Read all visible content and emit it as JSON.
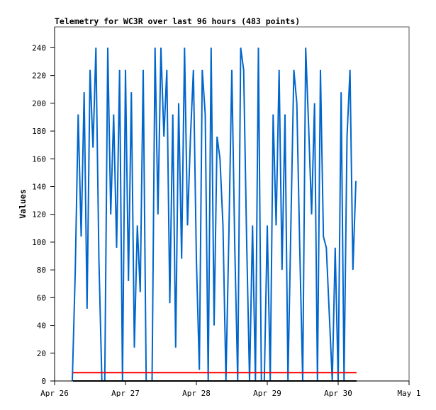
{
  "chart_data": {
    "type": "line",
    "title": "Telemetry for WC3R over last 96 hours (483 points)",
    "xlabel": "",
    "ylabel": "Values",
    "x_ticks": [
      "Apr 26",
      "Apr 27",
      "Apr 28",
      "Apr 29",
      "Apr 30",
      "May 1"
    ],
    "y_ticks": [
      0,
      20,
      40,
      60,
      80,
      100,
      120,
      140,
      160,
      180,
      200,
      220,
      240
    ],
    "xlim": [
      "Apr 26 00:00",
      "May 1 00:00"
    ],
    "ylim": [
      0,
      255
    ],
    "grid": false,
    "series": [
      {
        "color": "#0066cc",
        "x": [
          "Apr 26 06:00",
          "Apr 26 07:00",
          "Apr 26 08:00",
          "Apr 26 09:00",
          "Apr 26 10:00",
          "Apr 26 11:00",
          "Apr 26 12:00",
          "Apr 26 13:00",
          "Apr 26 14:00",
          "Apr 26 15:00",
          "Apr 26 16:00",
          "Apr 26 17:00",
          "Apr 26 18:00",
          "Apr 26 19:00",
          "Apr 26 20:00",
          "Apr 26 21:00",
          "Apr 26 22:00",
          "Apr 26 23:00",
          "Apr 27 00:00",
          "Apr 27 01:00",
          "Apr 27 02:00",
          "Apr 27 03:00",
          "Apr 27 04:00",
          "Apr 27 05:00",
          "Apr 27 06:00",
          "Apr 27 07:00",
          "Apr 27 08:00",
          "Apr 27 09:00",
          "Apr 27 10:00",
          "Apr 27 11:00",
          "Apr 27 12:00",
          "Apr 27 13:00",
          "Apr 27 14:00",
          "Apr 27 15:00",
          "Apr 27 16:00",
          "Apr 27 17:00",
          "Apr 27 18:00",
          "Apr 27 19:00",
          "Apr 27 20:00",
          "Apr 27 21:00",
          "Apr 27 22:00",
          "Apr 27 23:00",
          "Apr 28 00:00",
          "Apr 28 01:00",
          "Apr 28 02:00",
          "Apr 28 03:00",
          "Apr 28 04:00",
          "Apr 28 05:00",
          "Apr 28 06:00",
          "Apr 28 07:00",
          "Apr 28 08:00",
          "Apr 28 09:00",
          "Apr 28 10:00",
          "Apr 28 11:00",
          "Apr 28 12:00",
          "Apr 28 13:00",
          "Apr 28 14:00",
          "Apr 28 15:00",
          "Apr 28 16:00",
          "Apr 28 17:00",
          "Apr 28 18:00",
          "Apr 28 19:00",
          "Apr 28 20:00",
          "Apr 28 21:00",
          "Apr 28 22:00",
          "Apr 28 23:00",
          "Apr 29 00:00",
          "Apr 29 01:00",
          "Apr 29 02:00",
          "Apr 29 03:00",
          "Apr 29 04:00",
          "Apr 29 05:00",
          "Apr 29 06:00",
          "Apr 29 07:00",
          "Apr 29 08:00",
          "Apr 29 09:00",
          "Apr 29 10:00",
          "Apr 29 11:00",
          "Apr 29 12:00",
          "Apr 29 13:00",
          "Apr 29 14:00",
          "Apr 29 15:00",
          "Apr 29 16:00",
          "Apr 29 17:00",
          "Apr 29 18:00",
          "Apr 29 19:00",
          "Apr 29 20:00",
          "Apr 29 21:00",
          "Apr 29 22:00",
          "Apr 29 23:00",
          "Apr 30 00:00",
          "Apr 30 01:00",
          "Apr 30 02:00",
          "Apr 30 03:00",
          "Apr 30 04:00",
          "Apr 30 05:00",
          "Apr 30 06:00"
        ],
        "y": [
          0,
          80,
          192,
          104,
          208,
          52,
          224,
          168,
          240,
          88,
          0,
          0,
          240,
          120,
          192,
          96,
          224,
          0,
          224,
          72,
          208,
          24,
          112,
          64,
          224,
          0,
          0,
          0,
          240,
          120,
          240,
          176,
          224,
          56,
          192,
          24,
          200,
          88,
          240,
          112,
          176,
          224,
          88,
          8,
          224,
          192,
          0,
          240,
          40,
          176,
          160,
          112,
          0,
          104,
          224,
          96,
          0,
          240,
          224,
          104,
          0,
          112,
          0,
          240,
          0,
          0,
          112,
          0,
          192,
          112,
          224,
          80,
          192,
          0,
          112,
          224,
          200,
          96,
          0,
          240,
          184,
          120,
          200,
          0,
          224,
          104,
          96,
          48,
          0,
          96,
          0,
          208,
          0,
          176,
          224,
          80,
          144
        ]
      },
      {
        "color": "#ff0000",
        "x": [
          "Apr 26 06:15",
          "Apr 30 06:15"
        ],
        "y": [
          6,
          6
        ]
      },
      {
        "color": "#000000",
        "x": [
          "Apr 26 06:15",
          "Apr 30 06:15"
        ],
        "y": [
          0,
          0
        ]
      }
    ]
  }
}
